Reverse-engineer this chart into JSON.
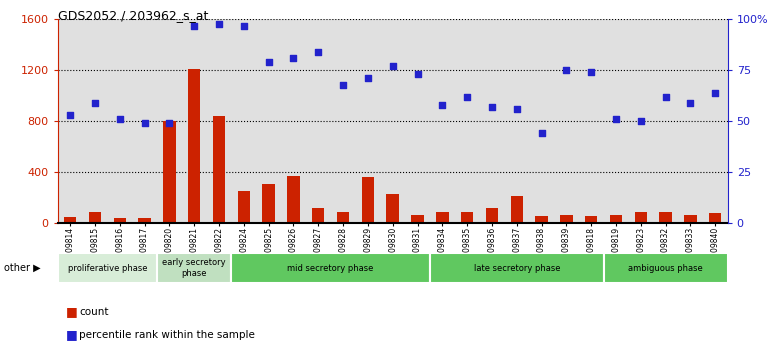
{
  "title": "GDS2052 / 203962_s_at",
  "samples": [
    "GSM109814",
    "GSM109815",
    "GSM109816",
    "GSM109817",
    "GSM109820",
    "GSM109821",
    "GSM109822",
    "GSM109824",
    "GSM109825",
    "GSM109826",
    "GSM109827",
    "GSM109828",
    "GSM109829",
    "GSM109830",
    "GSM109831",
    "GSM109834",
    "GSM109835",
    "GSM109836",
    "GSM109837",
    "GSM109838",
    "GSM109839",
    "GSM109818",
    "GSM109819",
    "GSM109823",
    "GSM109832",
    "GSM109833",
    "GSM109840"
  ],
  "counts": [
    50,
    90,
    40,
    40,
    800,
    1210,
    840,
    250,
    310,
    370,
    120,
    90,
    360,
    230,
    60,
    85,
    90,
    120,
    210,
    55,
    60,
    55,
    60,
    85,
    90,
    60,
    75
  ],
  "percentiles": [
    53,
    59,
    51,
    49,
    49,
    97,
    98,
    97,
    79,
    81,
    84,
    68,
    71,
    77,
    73,
    58,
    62,
    57,
    56,
    44,
    75,
    74,
    51,
    50,
    62,
    59,
    64
  ],
  "phases": [
    {
      "label": "proliferative phase",
      "start": 0,
      "end": 4,
      "color": "#d8edd8"
    },
    {
      "label": "early secretory\nphase",
      "start": 4,
      "end": 7,
      "color": "#c0e0c0"
    },
    {
      "label": "mid secretory phase",
      "start": 7,
      "end": 15,
      "color": "#60c860"
    },
    {
      "label": "late secretory phase",
      "start": 15,
      "end": 22,
      "color": "#60c860"
    },
    {
      "label": "ambiguous phase",
      "start": 22,
      "end": 27,
      "color": "#60c860"
    }
  ],
  "bar_color": "#cc2200",
  "dot_color": "#2222cc",
  "left_ylim": [
    0,
    1600
  ],
  "right_ylim": [
    0,
    100
  ],
  "left_yticks": [
    0,
    400,
    800,
    1200,
    1600
  ],
  "right_yticks": [
    0,
    25,
    50,
    75,
    100
  ],
  "right_yticklabels": [
    "0",
    "25",
    "50",
    "75",
    "100%"
  ],
  "background_color": "#ffffff",
  "col_bg_color": "#e0e0e0"
}
